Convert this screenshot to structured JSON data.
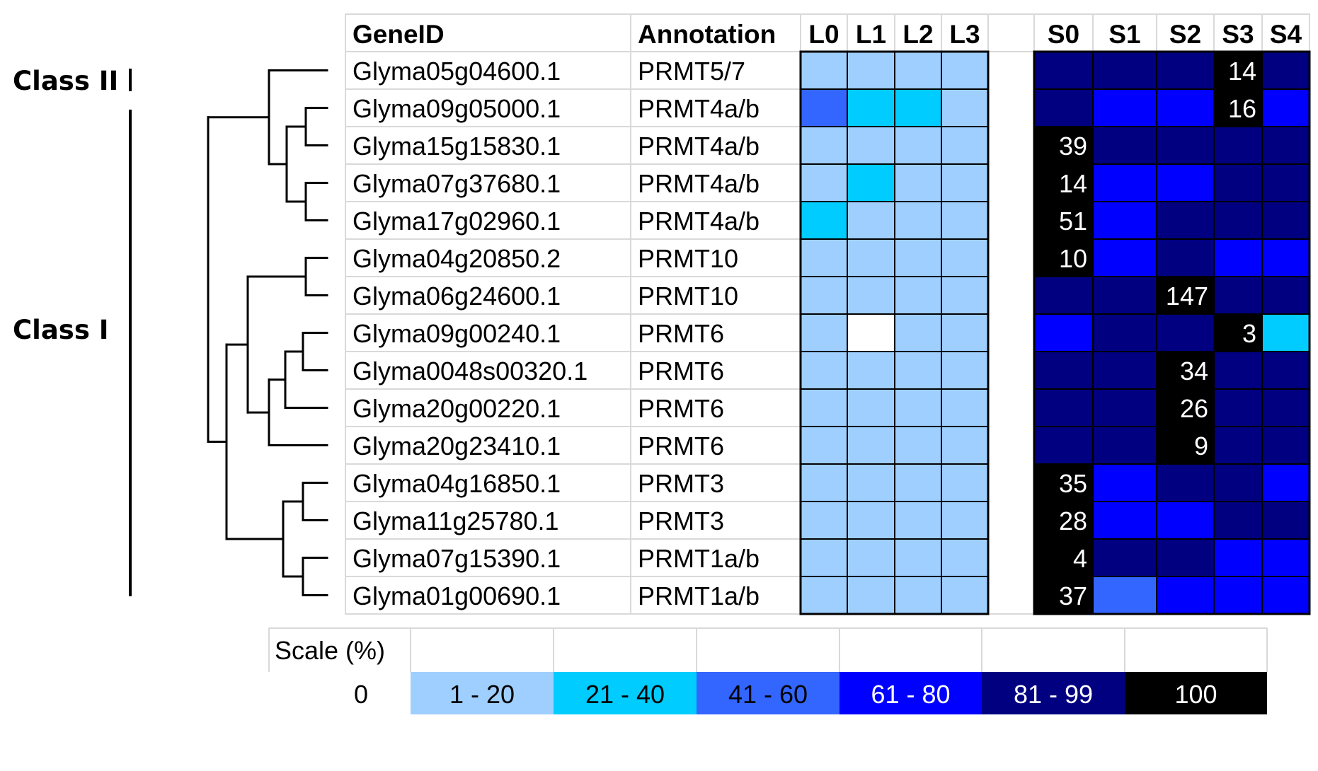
{
  "chart_data": {
    "type": "heatmap",
    "headers": {
      "gene": "GeneID",
      "annotation": "Annotation",
      "leaf_columns": [
        "L0",
        "L1",
        "L2",
        "L3"
      ],
      "seed_columns": [
        "S0",
        "S1",
        "S2",
        "S3",
        "S4"
      ]
    },
    "class_labels": [
      "Class II",
      "Class I"
    ],
    "color_classes": {
      "0": "#ffffff",
      "1-20": "#9fcfff",
      "21-40": "#00ccff",
      "41-60": "#3366ff",
      "61-80": "#0000ff",
      "81-99": "#000080",
      "100": "#000000"
    },
    "rows": [
      {
        "gene": "Glyma05g04600.1",
        "annotation": "PRMT5/7",
        "L": [
          "1-20",
          "1-20",
          "1-20",
          "1-20"
        ],
        "S": [
          "81-99",
          "81-99",
          "81-99",
          "100",
          "81-99"
        ],
        "labels": [
          "",
          "",
          "",
          "14",
          ""
        ]
      },
      {
        "gene": "Glyma09g05000.1",
        "annotation": "PRMT4a/b",
        "L": [
          "41-60",
          "21-40",
          "21-40",
          "1-20"
        ],
        "S": [
          "81-99",
          "61-80",
          "61-80",
          "100",
          "61-80"
        ],
        "labels": [
          "",
          "",
          "",
          "16",
          ""
        ]
      },
      {
        "gene": "Glyma15g15830.1",
        "annotation": "PRMT4a/b",
        "L": [
          "1-20",
          "1-20",
          "1-20",
          "1-20"
        ],
        "S": [
          "100",
          "81-99",
          "81-99",
          "81-99",
          "81-99"
        ],
        "labels": [
          "39",
          "",
          "",
          "",
          ""
        ]
      },
      {
        "gene": "Glyma07g37680.1",
        "annotation": "PRMT4a/b",
        "L": [
          "1-20",
          "21-40",
          "1-20",
          "1-20"
        ],
        "S": [
          "100",
          "61-80",
          "61-80",
          "81-99",
          "81-99"
        ],
        "labels": [
          "14",
          "",
          "",
          "",
          ""
        ]
      },
      {
        "gene": "Glyma17g02960.1",
        "annotation": "PRMT4a/b",
        "L": [
          "21-40",
          "1-20",
          "1-20",
          "1-20"
        ],
        "S": [
          "100",
          "61-80",
          "81-99",
          "81-99",
          "81-99"
        ],
        "labels": [
          "51",
          "",
          "",
          "",
          ""
        ]
      },
      {
        "gene": "Glyma04g20850.2",
        "annotation": "PRMT10",
        "L": [
          "1-20",
          "1-20",
          "1-20",
          "1-20"
        ],
        "S": [
          "100",
          "61-80",
          "81-99",
          "61-80",
          "61-80"
        ],
        "labels": [
          "10",
          "",
          "",
          "",
          ""
        ]
      },
      {
        "gene": "Glyma06g24600.1",
        "annotation": "PRMT10",
        "L": [
          "1-20",
          "1-20",
          "1-20",
          "1-20"
        ],
        "S": [
          "81-99",
          "81-99",
          "100",
          "81-99",
          "81-99"
        ],
        "labels": [
          "",
          "",
          "147",
          "",
          ""
        ]
      },
      {
        "gene": "Glyma09g00240.1",
        "annotation": "PRMT6",
        "L": [
          "1-20",
          "0",
          "1-20",
          "1-20"
        ],
        "S": [
          "61-80",
          "81-99",
          "81-99",
          "100",
          "21-40"
        ],
        "labels": [
          "",
          "",
          "",
          "3",
          ""
        ]
      },
      {
        "gene": "Glyma0048s00320.1",
        "annotation": "PRMT6",
        "L": [
          "1-20",
          "1-20",
          "1-20",
          "1-20"
        ],
        "S": [
          "81-99",
          "81-99",
          "100",
          "81-99",
          "81-99"
        ],
        "labels": [
          "",
          "",
          "34",
          "",
          ""
        ]
      },
      {
        "gene": "Glyma20g00220.1",
        "annotation": "PRMT6",
        "L": [
          "1-20",
          "1-20",
          "1-20",
          "1-20"
        ],
        "S": [
          "81-99",
          "81-99",
          "100",
          "81-99",
          "81-99"
        ],
        "labels": [
          "",
          "",
          "26",
          "",
          ""
        ]
      },
      {
        "gene": "Glyma20g23410.1",
        "annotation": "PRMT6",
        "L": [
          "1-20",
          "1-20",
          "1-20",
          "1-20"
        ],
        "S": [
          "81-99",
          "81-99",
          "100",
          "81-99",
          "81-99"
        ],
        "labels": [
          "",
          "",
          "9",
          "",
          ""
        ]
      },
      {
        "gene": "Glyma04g16850.1",
        "annotation": "PRMT3",
        "L": [
          "1-20",
          "1-20",
          "1-20",
          "1-20"
        ],
        "S": [
          "100",
          "61-80",
          "81-99",
          "81-99",
          "61-80"
        ],
        "labels": [
          "35",
          "",
          "",
          "",
          ""
        ]
      },
      {
        "gene": "Glyma11g25780.1",
        "annotation": "PRMT3",
        "L": [
          "1-20",
          "1-20",
          "1-20",
          "1-20"
        ],
        "S": [
          "100",
          "61-80",
          "61-80",
          "81-99",
          "81-99"
        ],
        "labels": [
          "28",
          "",
          "",
          "",
          ""
        ]
      },
      {
        "gene": "Glyma07g15390.1",
        "annotation": "PRMT1a/b",
        "L": [
          "1-20",
          "1-20",
          "1-20",
          "1-20"
        ],
        "S": [
          "100",
          "81-99",
          "81-99",
          "61-80",
          "61-80"
        ],
        "labels": [
          "4",
          "",
          "",
          "",
          ""
        ]
      },
      {
        "gene": "Glyma01g00690.1",
        "annotation": "PRMT1a/b",
        "L": [
          "1-20",
          "1-20",
          "1-20",
          "1-20"
        ],
        "S": [
          "100",
          "41-60",
          "61-80",
          "61-80",
          "61-80"
        ],
        "labels": [
          "37",
          "",
          "",
          "",
          ""
        ]
      }
    ],
    "scale": {
      "title": "Scale (%)",
      "items": [
        {
          "label": "0",
          "color": "#ffffff",
          "text_color": "#000000"
        },
        {
          "label": "1 - 20",
          "color": "#9fcfff",
          "text_color": "#000000"
        },
        {
          "label": "21 - 40",
          "color": "#00ccff",
          "text_color": "#000000"
        },
        {
          "label": "41 - 60",
          "color": "#3366ff",
          "text_color": "#000000"
        },
        {
          "label": "61 - 80",
          "color": "#0000ff",
          "text_color": "#ffffff"
        },
        {
          "label": "81 - 99",
          "color": "#000080",
          "text_color": "#ffffff"
        },
        {
          "label": "100",
          "color": "#000000",
          "text_color": "#ffffff"
        }
      ]
    }
  }
}
